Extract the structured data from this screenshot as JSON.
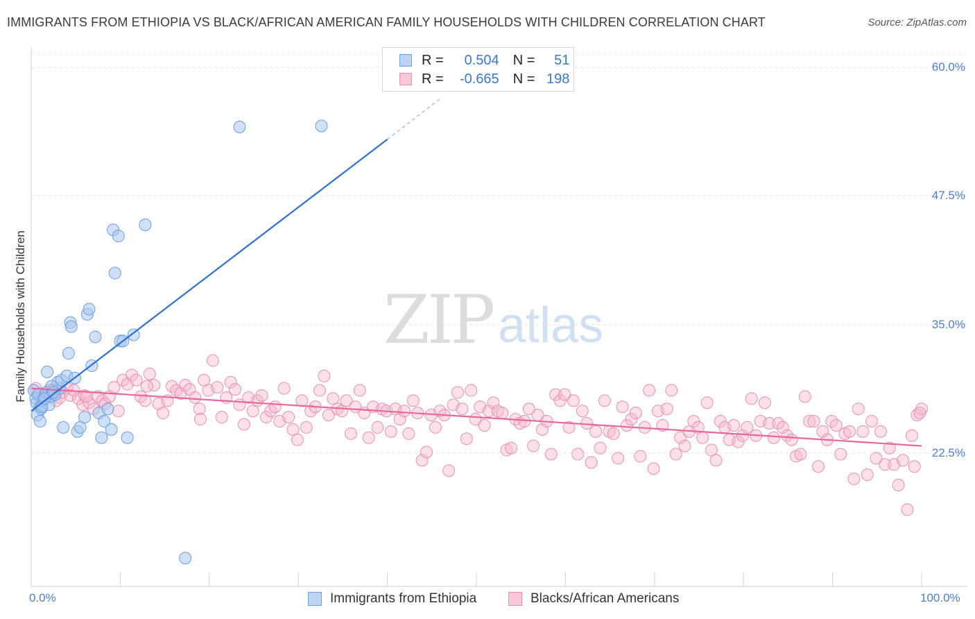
{
  "title": "IMMIGRANTS FROM ETHIOPIA VS BLACK/AFRICAN AMERICAN FAMILY HOUSEHOLDS WITH CHILDREN CORRELATION CHART",
  "source": "Source: ZipAtlas.com",
  "watermark": {
    "zip": "ZIP",
    "atlas": "atlas"
  },
  "legend": {
    "r_label": "R =",
    "n_label": "N =",
    "series1": {
      "r": "0.504",
      "n": "51"
    },
    "series2": {
      "r": "-0.665",
      "n": "198"
    }
  },
  "colors": {
    "blue_fill": "#a9c7ef",
    "blue_stroke": "#6a9ede",
    "blue_line": "#2b6fd0",
    "pink_fill": "#f6b9ce",
    "pink_stroke": "#ea8fb0",
    "pink_line": "#e8679a",
    "tick_text": "#4a7fd0"
  },
  "chart_data": {
    "type": "scatter",
    "title": "IMMIGRANTS FROM ETHIOPIA VS BLACK/AFRICAN AMERICAN FAMILY HOUSEHOLDS WITH CHILDREN CORRELATION CHART",
    "xlabel": "",
    "ylabel": "Family Households with Children",
    "xlim": [
      0,
      100
    ],
    "ylim": [
      12.5,
      63.0
    ],
    "x_ticks": [
      "0.0%",
      "100.0%"
    ],
    "y_ticks": [
      {
        "value": 22.5,
        "label": "22.5%"
      },
      {
        "value": 35.0,
        "label": "35.0%"
      },
      {
        "value": 47.5,
        "label": "47.5%"
      },
      {
        "value": 60.0,
        "label": "60.0%"
      }
    ],
    "grid": true,
    "legend_position": "top-center",
    "series": [
      {
        "name": "Immigrants from Ethiopia",
        "r": 0.504,
        "n": 51,
        "trend": {
          "x": [
            0.0,
            40.0
          ],
          "y": [
            26.6,
            53.0
          ],
          "dashed_to": {
            "x": 46.0,
            "y": 57.0
          }
        },
        "points": [
          [
            0.3,
            28.6
          ],
          [
            0.5,
            27.8
          ],
          [
            0.6,
            27.4
          ],
          [
            0.8,
            28.2
          ],
          [
            1.0,
            27.0
          ],
          [
            1.1,
            26.8
          ],
          [
            1.3,
            27.6
          ],
          [
            1.5,
            28.0
          ],
          [
            1.7,
            28.4
          ],
          [
            2.0,
            27.2
          ],
          [
            2.2,
            28.0
          ],
          [
            2.4,
            28.6
          ],
          [
            2.7,
            28.2
          ],
          [
            3.0,
            29.4
          ],
          [
            3.2,
            28.8
          ],
          [
            3.4,
            29.6
          ],
          [
            0.7,
            26.2
          ],
          [
            1.0,
            25.6
          ],
          [
            1.2,
            27.0
          ],
          [
            1.5,
            27.8
          ],
          [
            1.8,
            30.4
          ],
          [
            2.3,
            29.0
          ],
          [
            2.5,
            28.4
          ],
          [
            3.6,
            25.0
          ],
          [
            4.0,
            30.0
          ],
          [
            4.2,
            32.2
          ],
          [
            4.4,
            35.2
          ],
          [
            4.5,
            34.8
          ],
          [
            4.9,
            29.8
          ],
          [
            5.2,
            24.6
          ],
          [
            5.5,
            25.0
          ],
          [
            6.0,
            26.0
          ],
          [
            6.3,
            36.0
          ],
          [
            6.5,
            36.5
          ],
          [
            6.8,
            31.0
          ],
          [
            7.2,
            33.8
          ],
          [
            7.6,
            26.4
          ],
          [
            7.9,
            24.0
          ],
          [
            8.2,
            25.6
          ],
          [
            8.6,
            26.8
          ],
          [
            9.0,
            24.8
          ],
          [
            9.2,
            44.2
          ],
          [
            9.4,
            40.0
          ],
          [
            9.8,
            43.6
          ],
          [
            10.0,
            33.4
          ],
          [
            10.3,
            33.4
          ],
          [
            10.8,
            24.0
          ],
          [
            11.5,
            34.0
          ],
          [
            12.8,
            44.7
          ],
          [
            23.4,
            54.2
          ],
          [
            32.6,
            54.3
          ],
          [
            17.3,
            12.3
          ]
        ]
      },
      {
        "name": "Blacks/African Americans",
        "r": -0.665,
        "n": 198,
        "trend": {
          "x": [
            0.0,
            100.0
          ],
          "y": [
            28.8,
            23.2
          ]
        },
        "points": [
          [
            0.5,
            28.8
          ],
          [
            1.0,
            28.3
          ],
          [
            1.5,
            27.9
          ],
          [
            2.0,
            28.6
          ],
          [
            2.4,
            28.3
          ],
          [
            2.8,
            27.6
          ],
          [
            3.2,
            27.9
          ],
          [
            3.5,
            28.4
          ],
          [
            4.0,
            28.8
          ],
          [
            4.4,
            28.1
          ],
          [
            4.8,
            28.6
          ],
          [
            5.3,
            27.8
          ],
          [
            5.8,
            27.2
          ],
          [
            6.0,
            28.1
          ],
          [
            6.5,
            27.4
          ],
          [
            7.0,
            26.8
          ],
          [
            7.5,
            28.0
          ],
          [
            8.0,
            27.6
          ],
          [
            8.3,
            27.3
          ],
          [
            8.8,
            28.0
          ],
          [
            9.3,
            28.9
          ],
          [
            9.8,
            26.6
          ],
          [
            10.3,
            29.6
          ],
          [
            10.8,
            29.2
          ],
          [
            11.3,
            30.1
          ],
          [
            11.8,
            29.6
          ],
          [
            12.3,
            28.0
          ],
          [
            12.8,
            27.6
          ],
          [
            13.3,
            30.2
          ],
          [
            13.8,
            29.1
          ],
          [
            14.3,
            27.3
          ],
          [
            14.8,
            26.4
          ],
          [
            15.3,
            27.6
          ],
          [
            15.8,
            29.0
          ],
          [
            16.3,
            28.6
          ],
          [
            16.8,
            28.3
          ],
          [
            17.3,
            29.1
          ],
          [
            17.8,
            28.7
          ],
          [
            18.4,
            27.9
          ],
          [
            18.9,
            26.8
          ],
          [
            19.4,
            29.6
          ],
          [
            19.9,
            28.6
          ],
          [
            20.4,
            31.5
          ],
          [
            20.9,
            28.9
          ],
          [
            21.4,
            26.0
          ],
          [
            21.9,
            27.9
          ],
          [
            22.4,
            29.4
          ],
          [
            22.9,
            28.7
          ],
          [
            23.4,
            27.2
          ],
          [
            23.9,
            25.3
          ],
          [
            24.4,
            27.9
          ],
          [
            24.9,
            26.6
          ],
          [
            25.4,
            27.6
          ],
          [
            25.9,
            28.1
          ],
          [
            26.4,
            26.0
          ],
          [
            26.9,
            26.6
          ],
          [
            27.4,
            27.0
          ],
          [
            27.9,
            25.6
          ],
          [
            28.4,
            28.8
          ],
          [
            28.9,
            26.0
          ],
          [
            29.4,
            24.8
          ],
          [
            29.9,
            23.8
          ],
          [
            30.4,
            27.6
          ],
          [
            30.9,
            25.0
          ],
          [
            31.4,
            26.6
          ],
          [
            31.9,
            27.0
          ],
          [
            32.4,
            28.6
          ],
          [
            32.9,
            30.0
          ],
          [
            33.4,
            26.2
          ],
          [
            33.9,
            27.8
          ],
          [
            34.4,
            26.8
          ],
          [
            34.9,
            26.6
          ],
          [
            35.4,
            27.6
          ],
          [
            35.9,
            24.4
          ],
          [
            36.4,
            27.0
          ],
          [
            36.9,
            28.6
          ],
          [
            37.4,
            26.4
          ],
          [
            37.9,
            24.0
          ],
          [
            38.4,
            27.0
          ],
          [
            38.9,
            25.0
          ],
          [
            39.4,
            26.8
          ],
          [
            39.9,
            26.6
          ],
          [
            40.4,
            24.6
          ],
          [
            40.9,
            26.8
          ],
          [
            41.4,
            25.8
          ],
          [
            41.9,
            26.6
          ],
          [
            42.4,
            24.4
          ],
          [
            42.9,
            27.6
          ],
          [
            43.4,
            26.4
          ],
          [
            43.9,
            21.8
          ],
          [
            44.4,
            22.6
          ],
          [
            44.9,
            26.2
          ],
          [
            45.4,
            25.0
          ],
          [
            45.9,
            26.6
          ],
          [
            46.4,
            26.2
          ],
          [
            46.9,
            20.8
          ],
          [
            47.4,
            27.2
          ],
          [
            47.9,
            28.4
          ],
          [
            48.4,
            26.8
          ],
          [
            48.9,
            23.9
          ],
          [
            49.4,
            28.6
          ],
          [
            49.9,
            25.8
          ],
          [
            50.4,
            27.0
          ],
          [
            50.9,
            25.2
          ],
          [
            51.4,
            26.6
          ],
          [
            51.9,
            27.4
          ],
          [
            52.4,
            26.6
          ],
          [
            52.9,
            26.4
          ],
          [
            53.4,
            22.8
          ],
          [
            53.9,
            23.0
          ],
          [
            54.4,
            25.8
          ],
          [
            54.9,
            25.4
          ],
          [
            55.4,
            25.6
          ],
          [
            55.9,
            26.8
          ],
          [
            56.4,
            23.2
          ],
          [
            56.9,
            26.2
          ],
          [
            57.4,
            24.8
          ],
          [
            57.9,
            25.6
          ],
          [
            58.4,
            22.4
          ],
          [
            58.9,
            28.2
          ],
          [
            59.4,
            27.6
          ],
          [
            59.9,
            28.2
          ],
          [
            60.4,
            25.0
          ],
          [
            60.9,
            27.6
          ],
          [
            61.4,
            22.4
          ],
          [
            61.9,
            26.6
          ],
          [
            62.4,
            25.4
          ],
          [
            62.9,
            21.6
          ],
          [
            63.4,
            24.6
          ],
          [
            63.9,
            23.0
          ],
          [
            64.4,
            27.6
          ],
          [
            64.9,
            24.6
          ],
          [
            65.4,
            24.4
          ],
          [
            65.9,
            22.0
          ],
          [
            66.4,
            27.0
          ],
          [
            66.9,
            25.2
          ],
          [
            67.4,
            25.8
          ],
          [
            67.9,
            26.4
          ],
          [
            68.4,
            22.2
          ],
          [
            68.9,
            25.0
          ],
          [
            69.4,
            28.6
          ],
          [
            69.9,
            21.0
          ],
          [
            70.4,
            26.6
          ],
          [
            70.9,
            25.2
          ],
          [
            71.4,
            26.8
          ],
          [
            71.9,
            28.6
          ],
          [
            72.4,
            22.4
          ],
          [
            72.9,
            24.0
          ],
          [
            73.4,
            23.2
          ],
          [
            73.9,
            24.6
          ],
          [
            74.4,
            25.6
          ],
          [
            74.9,
            25.0
          ],
          [
            75.4,
            24.0
          ],
          [
            75.9,
            27.4
          ],
          [
            76.4,
            22.8
          ],
          [
            76.9,
            21.8
          ],
          [
            77.4,
            25.6
          ],
          [
            77.9,
            25.0
          ],
          [
            78.4,
            23.8
          ],
          [
            78.9,
            25.2
          ],
          [
            79.4,
            23.6
          ],
          [
            79.9,
            24.2
          ],
          [
            80.4,
            25.0
          ],
          [
            80.9,
            27.8
          ],
          [
            81.4,
            24.2
          ],
          [
            81.9,
            25.6
          ],
          [
            82.4,
            27.4
          ],
          [
            82.9,
            25.4
          ],
          [
            83.4,
            24.0
          ],
          [
            83.9,
            25.4
          ],
          [
            84.4,
            25.0
          ],
          [
            84.9,
            24.2
          ],
          [
            85.4,
            23.8
          ],
          [
            85.9,
            22.2
          ],
          [
            86.4,
            22.4
          ],
          [
            86.9,
            28.0
          ],
          [
            87.4,
            25.6
          ],
          [
            87.9,
            25.6
          ],
          [
            88.4,
            21.2
          ],
          [
            88.9,
            24.6
          ],
          [
            89.4,
            23.8
          ],
          [
            89.9,
            25.6
          ],
          [
            90.4,
            25.2
          ],
          [
            90.9,
            22.4
          ],
          [
            91.4,
            24.4
          ],
          [
            91.9,
            24.6
          ],
          [
            92.4,
            20.0
          ],
          [
            92.9,
            26.8
          ],
          [
            93.4,
            24.6
          ],
          [
            93.9,
            20.4
          ],
          [
            94.4,
            25.6
          ],
          [
            94.9,
            22.0
          ],
          [
            95.4,
            24.6
          ],
          [
            95.9,
            21.4
          ],
          [
            96.4,
            23.0
          ],
          [
            96.9,
            21.4
          ],
          [
            97.4,
            19.4
          ],
          [
            97.9,
            21.8
          ],
          [
            98.4,
            17.0
          ],
          [
            98.9,
            24.2
          ],
          [
            99.2,
            21.2
          ],
          [
            99.5,
            26.2
          ],
          [
            100.0,
            26.8
          ],
          [
            99.8,
            26.4
          ],
          [
            2.6,
            28.8
          ],
          [
            6.2,
            28.0
          ],
          [
            13.0,
            29.0
          ],
          [
            19.0,
            25.8
          ]
        ]
      }
    ]
  },
  "bottom_legend": {
    "series1": "Immigrants from Ethiopia",
    "series2": "Blacks/African Americans"
  }
}
